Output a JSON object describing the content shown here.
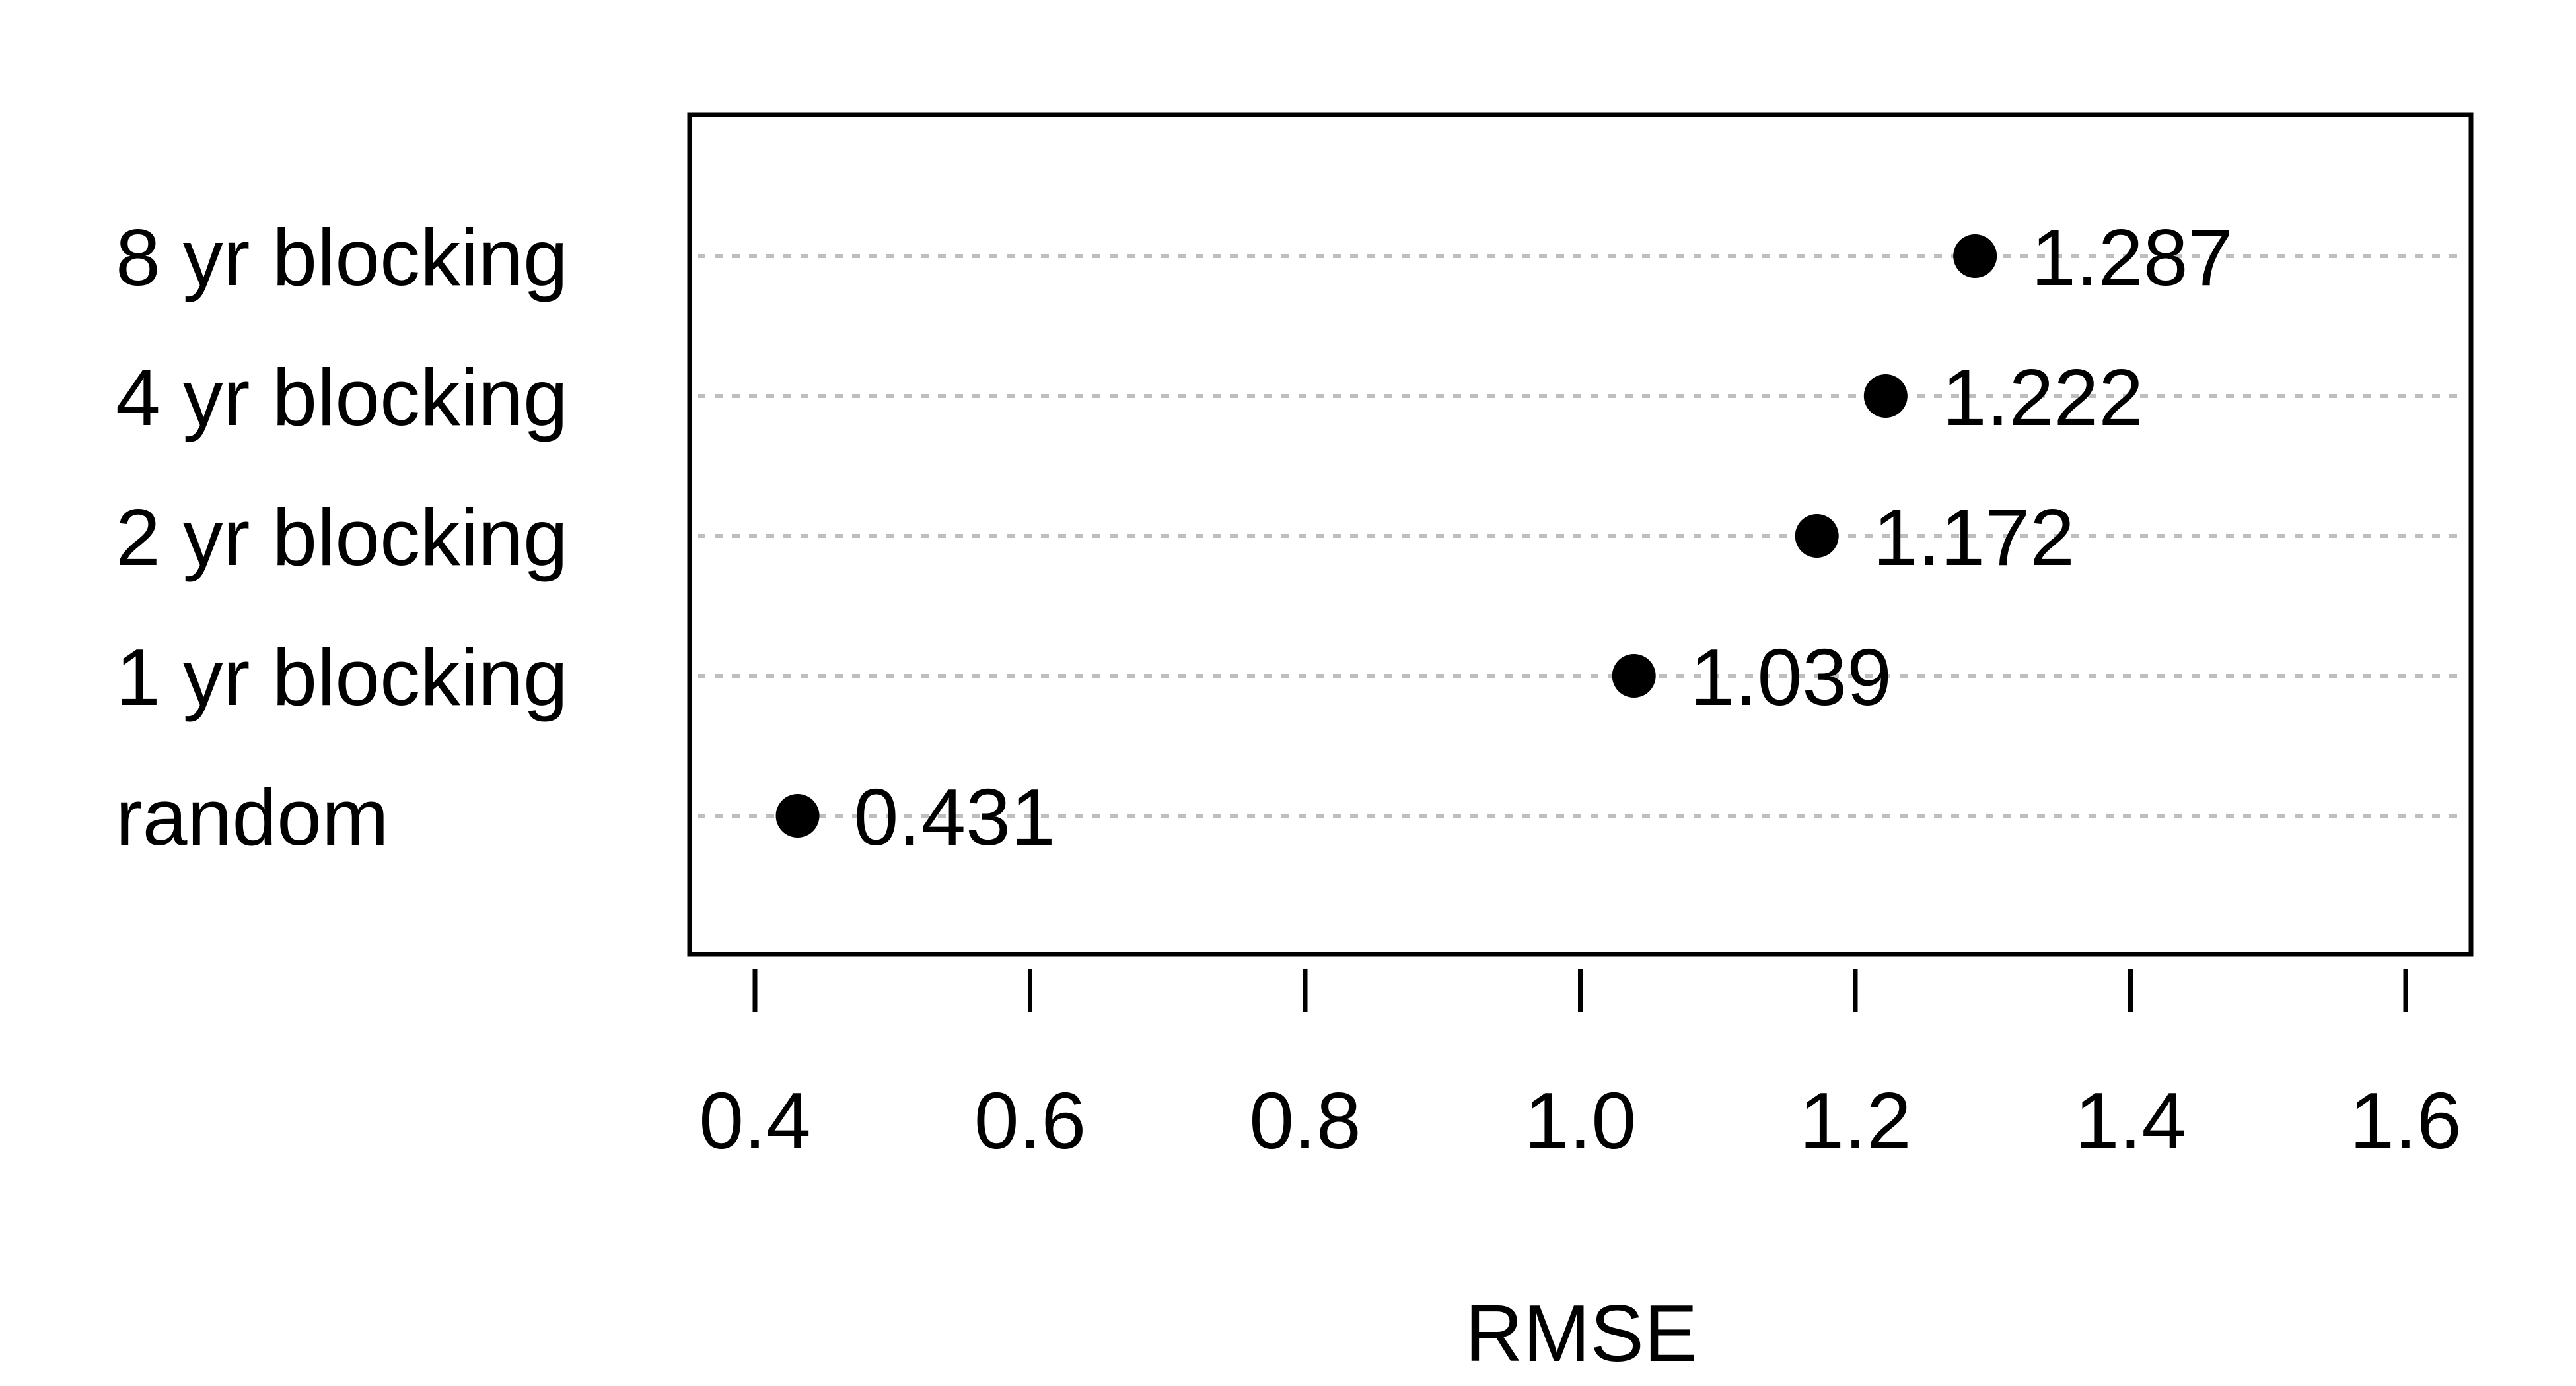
{
  "chart_data": {
    "type": "scatter",
    "subtype": "dot-plot",
    "title": "",
    "xlabel": "RMSE",
    "ylabel": "",
    "xlim": [
      0.35,
      1.65
    ],
    "xticks": [
      0.4,
      0.6,
      0.8,
      1.0,
      1.2,
      1.4,
      1.6
    ],
    "xtick_labels": [
      "0.4",
      "0.6",
      "0.8",
      "1.0",
      "1.2",
      "1.4",
      "1.6"
    ],
    "categories": [
      "random",
      "1 yr blocking",
      "2 yr blocking",
      "4 yr blocking",
      "8 yr blocking"
    ],
    "values": [
      0.431,
      1.039,
      1.172,
      1.222,
      1.287
    ],
    "value_labels": [
      "0.431",
      "1.039",
      "1.172",
      "1.222",
      "1.287"
    ],
    "grid": "dotted horizontal guide lines",
    "legend": "none",
    "colors": {
      "points": "#000000",
      "guides": "#bebebe",
      "frame": "#000000"
    }
  }
}
